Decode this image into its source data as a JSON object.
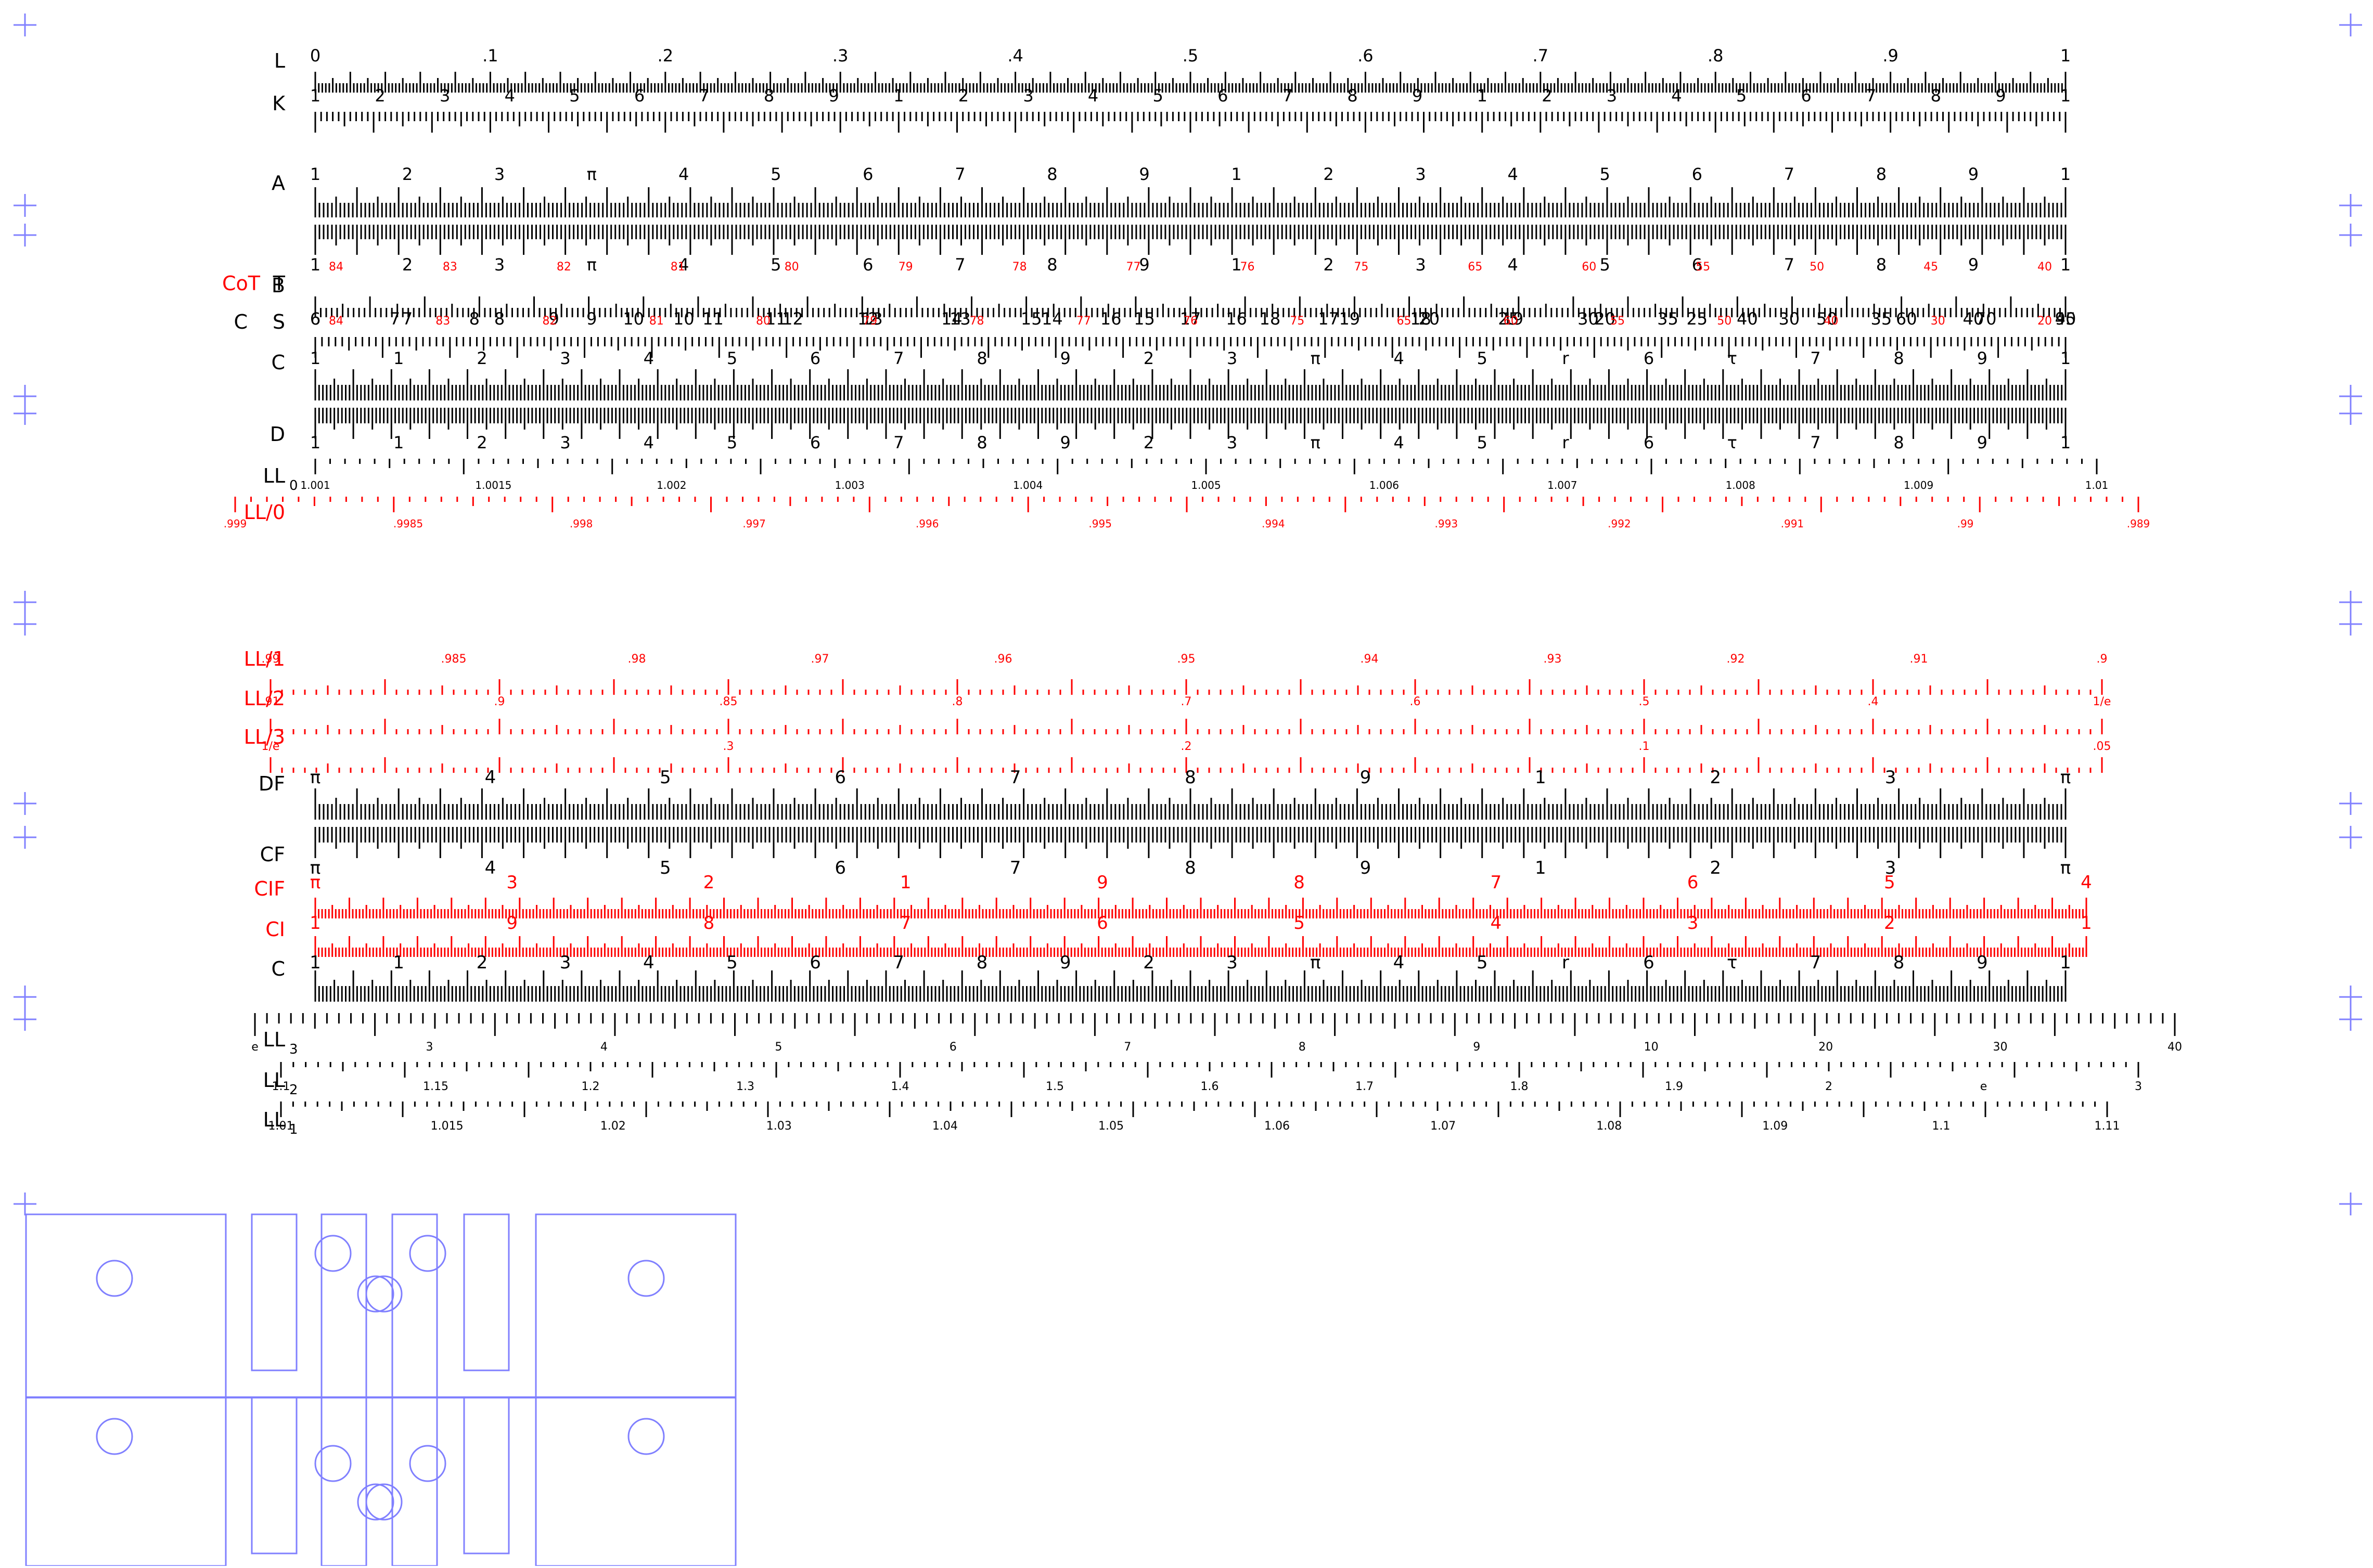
{
  "colors": {
    "ink": "#000000",
    "accent": "#ff0000",
    "cutout": "#8080ff"
  },
  "front": {
    "scales": [
      {
        "id": "L",
        "name": "L",
        "color": "ink",
        "labels": [
          "0",
          ".1",
          ".2",
          ".3",
          ".4",
          ".5",
          ".6",
          ".7",
          ".8",
          ".9",
          "1"
        ]
      },
      {
        "id": "K",
        "name": "K",
        "color": "ink",
        "labels": [
          "1",
          "2",
          "3",
          "4",
          "5",
          "6",
          "7",
          "8",
          "9",
          "1",
          "2",
          "3",
          "4",
          "5",
          "6",
          "7",
          "8",
          "9",
          "1",
          "2",
          "3",
          "4",
          "5",
          "6",
          "7",
          "8",
          "9",
          "1"
        ]
      },
      {
        "id": "A",
        "name": "A",
        "color": "ink",
        "labels": [
          "1",
          "2",
          "3",
          "π",
          "4",
          "5",
          "6",
          "7",
          "8",
          "9",
          "1",
          "2",
          "3",
          "4",
          "5",
          "6",
          "7",
          "8",
          "9",
          "1"
        ]
      },
      {
        "id": "B",
        "name": "B",
        "color": "ink",
        "labels": [
          "1",
          "2",
          "3",
          "π",
          "4",
          "5",
          "6",
          "7",
          "8",
          "9",
          "1",
          "2",
          "3",
          "4",
          "5",
          "6",
          "7",
          "8",
          "9",
          "1"
        ],
        "red_labels": [
          "84",
          "83",
          "82",
          "81",
          "80",
          "79",
          "78",
          "77",
          "76",
          "75",
          "65",
          "60",
          "55",
          "50",
          "45",
          "40"
        ]
      },
      {
        "id": "T",
        "name": "T",
        "side_name": "CoT",
        "color": "ink",
        "labels": [
          "6",
          "7",
          "8",
          "9",
          "10",
          "11",
          "12",
          "13",
          "14",
          "15",
          "16",
          "17",
          "18",
          "19",
          "20",
          "25",
          "30",
          "35",
          "40",
          "45"
        ]
      },
      {
        "id": "S",
        "name": "S",
        "side_name": "C",
        "color": "ink",
        "labels": [
          "6",
          "7",
          "8",
          "9",
          "10",
          "11",
          "12",
          "13",
          "14",
          "15",
          "16",
          "17",
          "18",
          "19",
          "20",
          "25",
          "30",
          "35",
          "40",
          "50",
          "60",
          "70",
          "90"
        ],
        "red_labels": [
          "84",
          "83",
          "82",
          "81",
          "80",
          "79",
          "78",
          "77",
          "76",
          "75",
          "65",
          "60",
          "55",
          "50",
          "40",
          "30",
          "20"
        ]
      },
      {
        "id": "C",
        "name": "C",
        "color": "ink",
        "labels": [
          "1",
          "1",
          "2",
          "3",
          "4",
          "5",
          "6",
          "7",
          "8",
          "9",
          "2",
          "3",
          "π",
          "4",
          "5",
          "r",
          "6",
          "τ",
          "7",
          "8",
          "9",
          "1"
        ]
      },
      {
        "id": "D",
        "name": "D",
        "color": "ink",
        "labels": [
          "1",
          "1",
          "2",
          "3",
          "4",
          "5",
          "6",
          "7",
          "8",
          "9",
          "2",
          "3",
          "π",
          "4",
          "5",
          "r",
          "6",
          "τ",
          "7",
          "8",
          "9",
          "1"
        ]
      },
      {
        "id": "LL0",
        "name": "LL",
        "sub": "0",
        "color": "ink",
        "labels": [
          "1.001",
          "1.0015",
          "1.002",
          "1.003",
          "1.004",
          "1.005",
          "1.006",
          "1.007",
          "1.008",
          "1.009",
          "1.01"
        ]
      },
      {
        "id": "LL00",
        "name": "LL/0",
        "color": "accent",
        "labels": [
          ".999",
          ".9985",
          ".998",
          ".997",
          ".996",
          ".995",
          ".994",
          ".993",
          ".992",
          ".991",
          ".99",
          ".989"
        ]
      }
    ]
  },
  "back": {
    "scales": [
      {
        "id": "LL01",
        "name": "LL/1",
        "color": "accent",
        "labels": [
          ".99",
          ".985",
          ".98",
          ".97",
          ".96",
          ".95",
          ".94",
          ".93",
          ".92",
          ".91",
          ".9"
        ]
      },
      {
        "id": "LL02",
        "name": "LL/2",
        "color": "accent",
        "labels": [
          ".91",
          ".9",
          ".85",
          ".8",
          ".7",
          ".6",
          ".5",
          ".4",
          "1/e"
        ]
      },
      {
        "id": "LL03",
        "name": "LL/3",
        "color": "accent",
        "labels": [
          "1/e",
          ".3",
          ".2",
          ".1",
          ".05"
        ]
      },
      {
        "id": "DF",
        "name": "DF",
        "color": "ink",
        "labels": [
          "π",
          "4",
          "5",
          "6",
          "7",
          "8",
          "9",
          "1",
          "2",
          "3",
          "π"
        ]
      },
      {
        "id": "CF",
        "name": "CF",
        "color": "ink",
        "labels": [
          "π",
          "4",
          "5",
          "6",
          "7",
          "8",
          "9",
          "1",
          "2",
          "3",
          "π"
        ]
      },
      {
        "id": "CIF",
        "name": "CIF",
        "color": "accent",
        "labels": [
          "π",
          "3",
          "2",
          "1",
          "9",
          "8",
          "7",
          "6",
          "5",
          "4"
        ]
      },
      {
        "id": "CI",
        "name": "CI",
        "color": "accent",
        "labels": [
          "1",
          "9",
          "8",
          "7",
          "6",
          "5",
          "4",
          "3",
          "2",
          "1"
        ]
      },
      {
        "id": "C2",
        "name": "C",
        "color": "ink",
        "labels": [
          "1",
          "1",
          "2",
          "3",
          "4",
          "5",
          "6",
          "7",
          "8",
          "9",
          "2",
          "3",
          "π",
          "4",
          "5",
          "r",
          "6",
          "τ",
          "7",
          "8",
          "9",
          "1"
        ]
      },
      {
        "id": "LL3",
        "name": "LL",
        "sub": "3",
        "color": "ink",
        "labels": [
          "e",
          "3",
          "4",
          "5",
          "6",
          "7",
          "8",
          "9",
          "10",
          "20",
          "30",
          "40"
        ]
      },
      {
        "id": "LL2",
        "name": "LL",
        "sub": "2",
        "color": "ink",
        "labels": [
          "1.1",
          "1.15",
          "1.2",
          "1.3",
          "1.4",
          "1.5",
          "1.6",
          "1.7",
          "1.8",
          "1.9",
          "2",
          "e",
          "3"
        ]
      },
      {
        "id": "LL1",
        "name": "LL",
        "sub": "1",
        "color": "ink",
        "labels": [
          "1.01",
          "1.015",
          "1.02",
          "1.03",
          "1.04",
          "1.05",
          "1.06",
          "1.07",
          "1.08",
          "1.09",
          "1.1",
          "1.11"
        ]
      }
    ]
  }
}
